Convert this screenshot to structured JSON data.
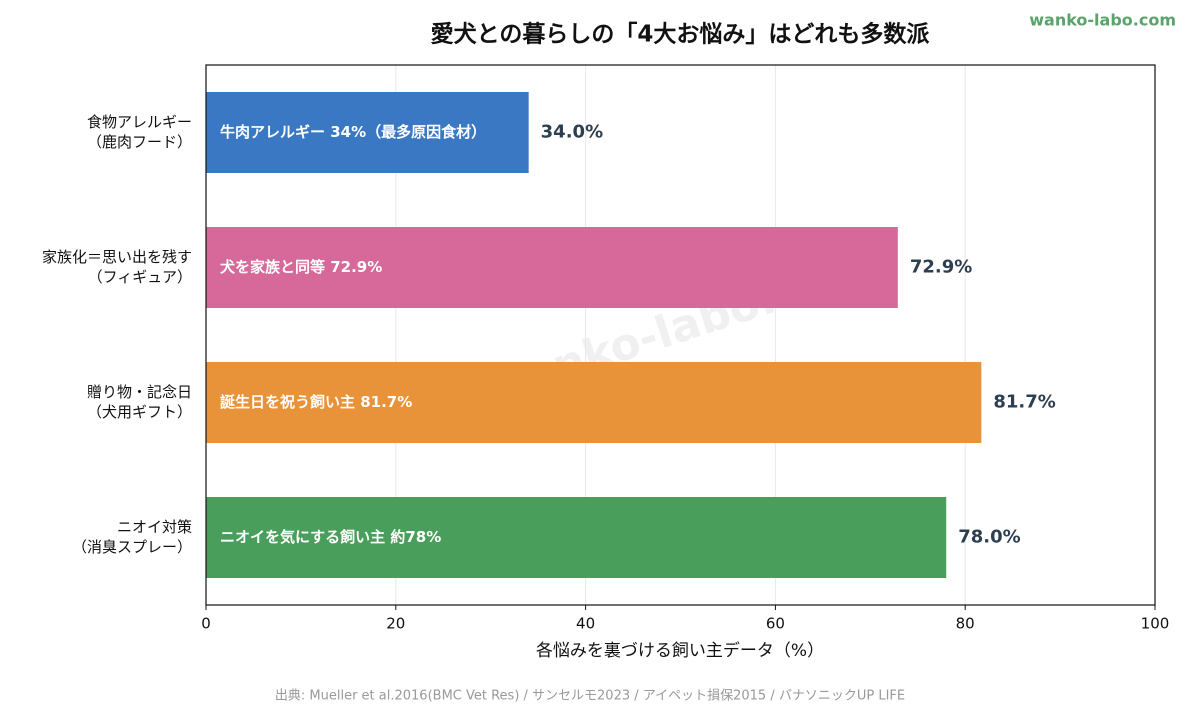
{
  "chart_data": {
    "type": "barh",
    "title": "愛犬との暮らしの「4大お悩み」はどれも多数派",
    "brand": "wanko-labo.com",
    "watermark": "wanko-labo.com",
    "categories": [
      [
        "食物アレルギー",
        "（鹿肉フード）"
      ],
      [
        "家族化＝思い出を残す",
        "（フィギュア）"
      ],
      [
        "贈り物・記念日",
        "（犬用ギフト）"
      ],
      [
        "ニオイ対策",
        "（消臭スプレー）"
      ]
    ],
    "values": [
      34.0,
      72.9,
      81.7,
      78.0
    ],
    "value_labels": [
      "34.0%",
      "72.9%",
      "81.7%",
      "78.0%"
    ],
    "bar_annotations": [
      "牛肉アレルギー 34%（最多原因食材）",
      "犬を家族と同等 72.9%",
      "誕生日を祝う飼い主 81.7%",
      "ニオイを気にする飼い主 約78%"
    ],
    "colors": [
      "#3a78c3",
      "#d6689a",
      "#e8923a",
      "#4a9e5c"
    ],
    "xlabel": "各悩みを裏づける飼い主データ（%）",
    "xlim": [
      0,
      100
    ],
    "xticks": [
      0,
      20,
      40,
      60,
      80,
      100
    ],
    "grid": true,
    "source": "出典: Mueller et al.2016(BMC Vet Res) / サンセルモ2023 / アイペット損保2015 / パナソニックUP LIFE"
  }
}
